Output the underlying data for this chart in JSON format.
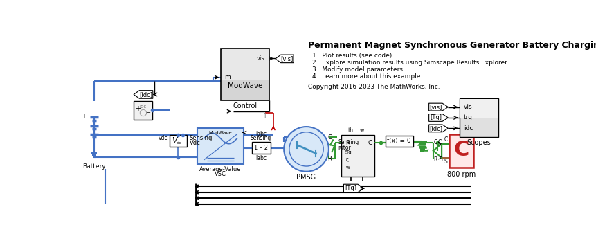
{
  "title": "Permanent Magnet Synchronous Generator Battery Charging",
  "info_lines": [
    "1.  Plot results (see code)",
    "2.  Explore simulation results using Simscape Results Explorer",
    "3.  Modify model parameters",
    "4.  Learn more about this example"
  ],
  "copyright": "Copyright 2016-2023 The MathWorks, Inc.",
  "bg": "#ffffff",
  "blue": "#5B9BD5",
  "blue_light": "#D6E4F0",
  "blue_wire": "#4472C4",
  "green": "#339933",
  "red_wire": "#C00000",
  "brown": "#7B3F00",
  "black": "#000000",
  "gray_ctrl": "#C0C0C0",
  "gray_block": "#E8E8E8",
  "gray_light": "#F0F0F0",
  "red_cap": "#C0392B",
  "scope_tag_vis": "[vis]",
  "scope_tag_tq": "[Tq]",
  "scope_tag_idc": "[idc]",
  "scope_port_vis": "vis",
  "scope_port_trq": "trq",
  "scope_port_idc": "idc"
}
